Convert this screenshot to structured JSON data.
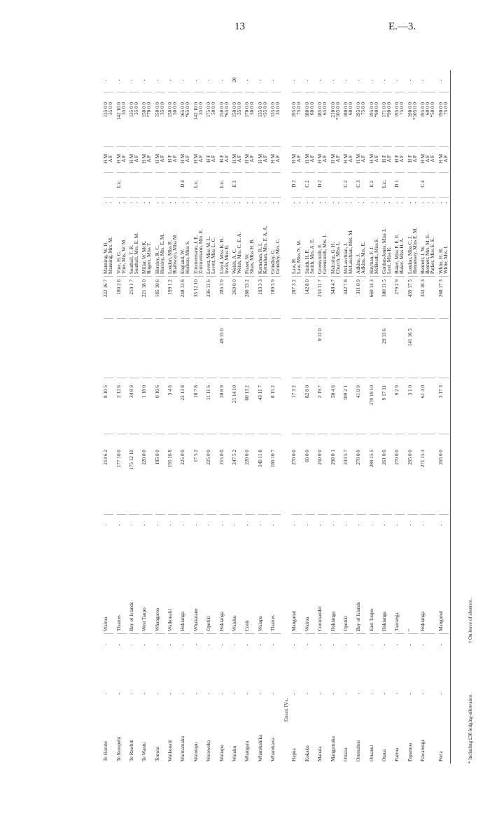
{
  "header": {
    "page_number": "13",
    "doc_ref": "E.—3."
  },
  "groups": [
    {
      "grade": "",
      "schools": [
        {
          "name": "Te Haroto",
          "county": "Wairoa",
          "exp1": "214  6  2",
          "exp2": "8 10  5",
          "exp3": "",
          "total": "222 16  7",
          "extra": "",
          "teachers": [
            {
              "name": "Manning, W. H.",
              "cls": "",
              "pos": "H M",
              "sal": "135  0  0"
            },
            {
              "name": "Manning, Mrs. M.",
              "cls": "",
              "pos": "A F",
              "sal": "35  0  0"
            }
          ]
        },
        {
          "name": "Te Kerepehi",
          "county": "Thames",
          "exp1": "177 10  0",
          "exp2": "2 12  6",
          "exp3": "",
          "total": "180  2  6",
          "extra": "",
          "teachers": [
            {
              "name": "Vine, H. G.",
              "cls": "Lic.",
              "pos": "H M",
              "sal": "142 10  0"
            },
            {
              "name": "Vine, Mrs. W. M.",
              "cls": "",
              "pos": "A F",
              "sal": "35  0  0"
            }
          ]
        },
        {
          "name": "Te Rawhiti",
          "county": "Bay of Islands",
          "exp1": "175 12 10",
          "exp2": "34  8  9",
          "exp3": "",
          "total": "210  1  7",
          "extra": "",
          "teachers": [
            {
              "name": "Southall, T. R.",
              "cls": "",
              "pos": "H M",
              "sal": "135  0  0"
            },
            {
              "name": "Southall, Mrs. E. M.",
              "cls": "",
              "pos": "A F",
              "sal": "35  0  0"
            }
          ]
        },
        {
          "name": "Te Waotu",
          "county": "West Taupo",
          "exp1": "220  0  0",
          "exp2": "1 18  0",
          "exp3": "",
          "total": "221 18  0",
          "extra": "",
          "teachers": [
            {
              "name": "Millar, W. McK.",
              "cls": "",
              "pos": "H M",
              "sal": "150  0  0"
            },
            {
              "name": "Rogers, Miss T.",
              "cls": "",
              "pos": "A F",
              "sal": "*70  0  0"
            }
          ]
        },
        {
          "name": "Touwai",
          "county": "Whangaroa",
          "exp1": "185  0  0",
          "exp2": "0 10  6",
          "exp3": "",
          "total": "185 10  6",
          "extra": "",
          "teachers": [
            {
              "name": "Horsley, R. C.",
              "cls": "",
              "pos": "H M",
              "sal": "150  0  0"
            },
            {
              "name": "Horsley, Mrs. E. M.",
              "cls": "",
              "pos": "A F",
              "sal": "35  0  0"
            }
          ]
        },
        {
          "name": "Waikouaiti",
          "county": "Waikouaiti",
          "exp1": "195 16  8",
          "exp2": "3  4  6",
          "exp3": "",
          "total": "199  1  2",
          "extra": "",
          "teachers": [
            {
              "name": "London, Miss R.",
              "cls": "",
              "pos": "H F",
              "sal": "150  0  0"
            },
            {
              "name": "Blathwayt, Miss M.",
              "cls": "",
              "pos": "A F",
              "sal": "50  0  0"
            }
          ]
        },
        {
          "name": "Waimamaku",
          "county": "Hokianga",
          "exp1": "225  0  0",
          "exp2": "23 13  8",
          "exp3": "",
          "total": "248 13  8",
          "extra": "",
          "teachers": [
            {
              "name": "England, W.",
              "cls": "D 4",
              "pos": "H M",
              "sal": "165  0  0"
            },
            {
              "name": "Hodson, Miss S.",
              "cls": "",
              "pos": "A F",
              "sal": "*65  0  0"
            }
          ]
        },
        {
          "name": "Waiotapu",
          "county": "Whakatane",
          "exp1": "17  5  2",
          "exp2": "18  7  8",
          "exp3": "",
          "total": "35 12 10",
          "extra": "",
          "teachers": [
            {
              "name": "Zimmermann, J. E.",
              "cls": "Lic.",
              "pos": "H M",
              "sal": "142 10  0"
            },
            {
              "name": "Zimmermann, Mrs. E.",
              "cls": "",
              "pos": "A F",
              "sal": "35  0  0"
            }
          ]
        },
        {
          "name": "Waioweka",
          "county": "Opotiki",
          "exp1": "225  0  0",
          "exp2": "11 11  6",
          "exp3": "",
          "total": "236 11  6",
          "extra": "",
          "teachers": [
            {
              "name": "Levett, Miss M. L.",
              "cls": "",
              "pos": "H F",
              "sal": "175  0  0"
            },
            {
              "name": "Levett, Miss L. C.",
              "cls": "",
              "pos": "A F",
              "sal": "50  0  0"
            }
          ]
        },
        {
          "name": "Waitapu",
          "county": "Hokianga",
          "exp1": "215  0  0",
          "exp2": "20  8  9",
          "exp3": "49 15  0",
          "total": "285  3  9",
          "extra": "",
          "teachers": [
            {
              "name": "Lloyd, Miss K. B.",
              "cls": "Lic.",
              "pos": "H F",
              "sal": "150  0  0"
            },
            {
              "name": "Irwin, Miss B.",
              "cls": "",
              "pos": "A F",
              "sal": "*65  0  0"
            }
          ]
        },
        {
          "name": "Waiuku",
          "county": "Waiuku",
          "exp1": "247  5  2",
          "exp2": "21 14 10",
          "exp3": "",
          "total": "269  0  0",
          "extra": "20",
          "teachers": [
            {
              "name": "Welsh, A. C.",
              "cls": "E 3",
              "pos": "H M",
              "sal": "150  0  0"
            },
            {
              "name": "Welsh, Mrs. C. E. A.",
              "cls": "",
              "pos": "A F",
              "sal": "35  0  0"
            }
          ]
        },
        {
          "name": "Whangara",
          "county": "Cook",
          "exp1": "220  0  0",
          "exp2": "60 13  2",
          "exp3": "",
          "total": "280 13  2",
          "extra": "",
          "teachers": [
            {
              "name": "Fraser, W.",
              "cls": "",
              "pos": "H M",
              "sal": "170  0  0"
            },
            {
              "name": "Shaw, Miss H. B.",
              "cls": "",
              "pos": "A F",
              "sal": "50  0  0"
            }
          ]
        },
        {
          "name": "Wharekahika",
          "county": "Waiapu",
          "exp1": "149 11  8",
          "exp2": "43 11  7",
          "exp3": "",
          "total": "193  3  3",
          "extra": "",
          "teachers": [
            {
              "name": "Kernahan, R. I.",
              "cls": "",
              "pos": "H M",
              "sal": "135  0  0"
            },
            {
              "name": "Kernahan, Mrs. F. A. A.",
              "cls": "",
              "pos": "A F",
              "sal": "†35  0  0"
            }
          ]
        },
        {
          "name": "Wharekawa",
          "county": "Thames",
          "exp1": "180 10  7",
          "exp2": "8 15  2",
          "exp3": "",
          "total": "189  5  9",
          "extra": "",
          "teachers": [
            {
              "name": "Grindley, G.",
              "cls": "",
              "pos": "H M",
              "sal": "135  0  0"
            },
            {
              "name": "Grindley, Mrs. C.",
              "cls": "",
              "pos": "A F",
              "sal": "35  0  0"
            }
          ]
        }
      ]
    },
    {
      "grade": "Grade IVa.",
      "schools": [
        {
          "name": "Hapua",
          "county": "Mangonui",
          "exp1": "270  0  0",
          "exp2": "17  3  2",
          "exp3": "",
          "total": "287  3  2",
          "extra": "",
          "teachers": [
            {
              "name": "Law, H.",
              "cls": "D 2",
              "pos": "H M",
              "sal": "195  0  0"
            },
            {
              "name": "Law, Miss N. M.",
              "cls": "",
              "pos": "A F",
              "sal": "75  0  0"
            }
          ]
        },
        {
          "name": "Kokako",
          "county": "Wairoa",
          "exp1": "60  0  0",
          "exp2": "82  8  0",
          "exp3": "",
          "total": "142  8  0",
          "extra": "",
          "teachers": [
            {
              "name": "Smith, H. P.",
              "cls": "C 2",
              "pos": "H M",
              "sal": "180  0  0"
            },
            {
              "name": "Smith, Mrs. A. E.",
              "cls": "",
              "pos": "A F",
              "sal": "60  0  0"
            }
          ]
        },
        {
          "name": "Manaia",
          "county": "Coromandel",
          "exp1": "250  0  0",
          "exp2": "2 19  7",
          "exp3": "0 12  0",
          "total": "253 11  7",
          "extra": "",
          "teachers": [
            {
              "name": "Greensmith, E.",
              "cls": "D 2",
              "pos": "H M",
              "sal": "185  0  0"
            },
            {
              "name": "Greensmith, Mrs. I.",
              "cls": "",
              "pos": "A F",
              "sal": "65  0  0"
            }
          ]
        },
        {
          "name": "Mangamuka",
          "county": "Hokianga",
          "exp1": "298  0  1",
          "exp2": "50  4  6",
          "exp3": "",
          "total": "348  4  7",
          "extra": "",
          "teachers": [
            {
              "name": "Malcolm, G. H.",
              "cls": "",
              "pos": "H M",
              "sal": "210  0  0"
            },
            {
              "name": "Church, Miss L.",
              "cls": "",
              "pos": "A F",
              "sal": "*105  0  0"
            }
          ]
        },
        {
          "name": "Omaio",
          "county": "Opotiki",
          "exp1": "233  5  7",
          "exp2": "109  2  1",
          "exp3": "",
          "total": "342  7  8",
          "extra": "",
          "teachers": [
            {
              "name": "McLauchlan, J.",
              "cls": "C 2",
              "pos": "H M",
              "sal": "180  0  0"
            },
            {
              "name": "McLauchlan, Mrs. M.",
              "cls": "",
              "pos": "A F",
              "sal": "60  0  0"
            }
          ]
        },
        {
          "name": "Oromahoe",
          "county": "Bay of Islands",
          "exp1": "270  0  0",
          "exp2": "41  0  9",
          "exp3": "",
          "total": "311  0  9",
          "extra": "",
          "teachers": [
            {
              "name": "Adkins, J.",
              "cls": "C 3",
              "pos": "H M",
              "sal": "195  0  0"
            },
            {
              "name": "Adkins, Mrs. E.",
              "cls": "",
              "pos": "A F",
              "sal": "75  0  0"
            }
          ]
        },
        {
          "name": "Oruanui",
          "county": "East Taupo",
          "exp1": "289 15  5",
          "exp2": "370 18 10",
          "exp3": "",
          "total": "660 14  3",
          "extra": "",
          "teachers": [
            {
              "name": "Hayman, F. J.",
              "cls": "E 2",
              "pos": "H M",
              "sal": "195  0  0"
            },
            {
              "name": "McBeath, Miss F.",
              "cls": "",
              "pos": "A F",
              "sal": "*90  0  0"
            }
          ]
        },
        {
          "name": "Otaua",
          "county": "Hokianga",
          "exp1": "261  0  0",
          "exp2": "9 17 11",
          "exp3": "29 13  6",
          "total": "300 11  5",
          "extra": "",
          "teachers": [
            {
              "name": "Gordon-Jones, Miss J.",
              "cls": "Lic.",
              "pos": "H F",
              "sal": "171  0  0"
            },
            {
              "name": "Leef, Miss K.",
              "cls": "",
              "pos": "A F",
              "sal": "*90  0  0"
            }
          ]
        },
        {
          "name": "Paeroa",
          "county": "Tauranga",
          "exp1": "270  0  0",
          "exp2": "9  2  9",
          "exp3": "",
          "total": "279  2  9",
          "extra": "",
          "teachers": [
            {
              "name": "Baker, Miss F. E. E.",
              "cls": "D 1",
              "pos": "H F",
              "sal": "195  0  0"
            },
            {
              "name": "Baker, Miss H. A.",
              "cls": "",
              "pos": "A F",
              "sal": "75  0  0"
            }
          ]
        },
        {
          "name": "Papamoa",
          "county": "\"",
          "exp1": "295  0  0",
          "exp2": "3  1  0",
          "exp3": "141 16  5",
          "total": "439 17  5",
          "extra": "",
          "teachers": [
            {
              "name": "London, Miss C. J.",
              "cls": "",
              "pos": "H F",
              "sal": "190  0  0"
            },
            {
              "name": "Hennessey, Miss E. M.",
              "cls": "",
              "pos": "A F",
              "sal": "*105  0  0"
            }
          ]
        },
        {
          "name": "Pawarenga",
          "county": "Hokianga",
          "exp1": "271 15  3",
          "exp2": "61  3  0",
          "exp3": "",
          "total": "332 18  3",
          "extra": "",
          "teachers": [
            {
              "name": "Bennett, J. W.",
              "cls": "C 4",
              "pos": "H M",
              "sal": "195  0  0"
            },
            {
              "name": "Bennett, Mrs. M. E.",
              "cls": "",
              "pos": "A F",
              "sal": "60  0  0"
            },
            {
              "name": "Parker, Miss E. E.",
              "cls": "",
              "pos": "A F",
              "sal": "*50  0  0"
            }
          ]
        },
        {
          "name": "Peria",
          "county": "Mangonui",
          "exp1": "265  0  0",
          "exp2": "3 17  3",
          "exp3": "",
          "total": "268 17  3",
          "extra": "",
          "teachers": [
            {
              "name": "White, H. H.",
              "cls": "",
              "pos": "H M",
              "sal": "190  0  0"
            },
            {
              "name": "White, Mrs. I.",
              "cls": "",
              "pos": "A F",
              "sal": "75  0  0"
            }
          ]
        }
      ]
    }
  ],
  "footnotes": {
    "lodging": "* Including £30 lodging-allowance.",
    "leave": "† On leave of absence."
  }
}
